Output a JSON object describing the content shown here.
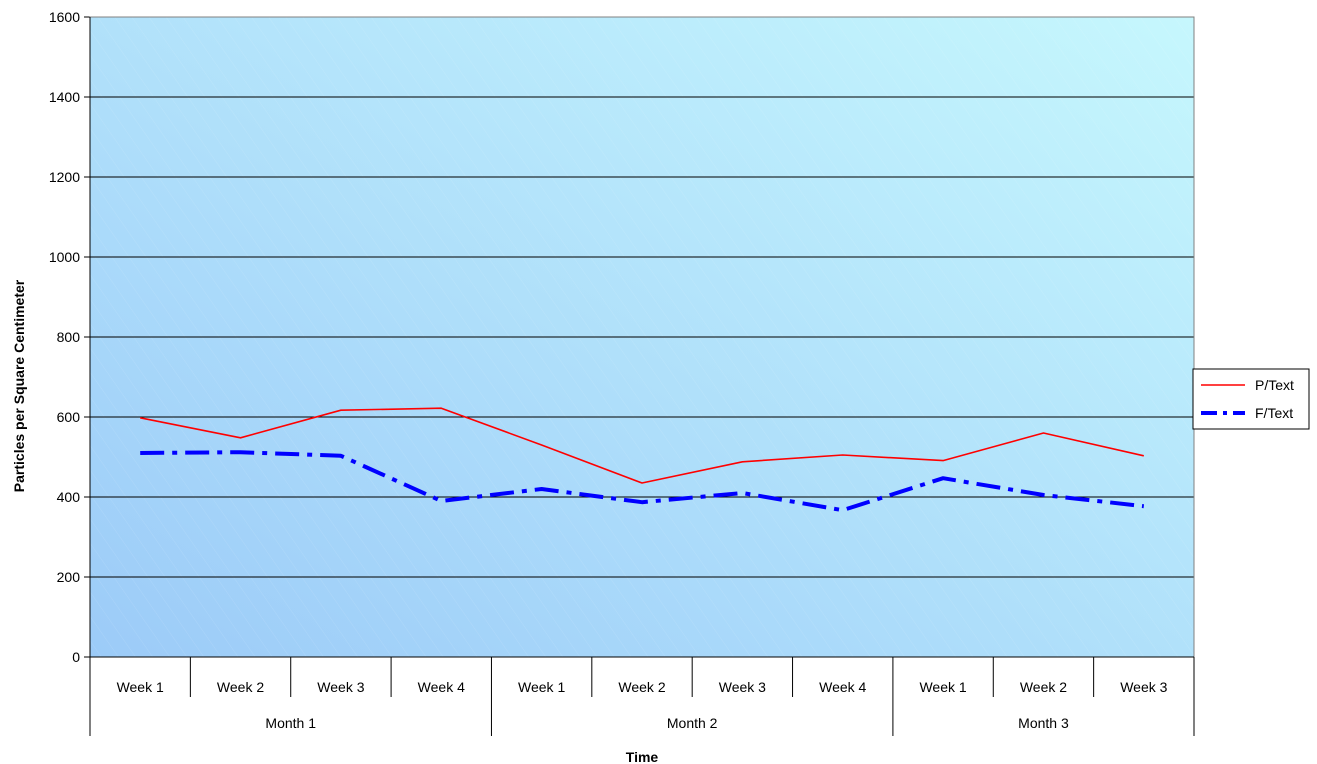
{
  "chart_data": {
    "type": "line",
    "xlabel": "Time",
    "ylabel": "Particles per Square Centimeter",
    "ylim": [
      0,
      1600
    ],
    "yticks": [
      0,
      200,
      400,
      600,
      800,
      1000,
      1200,
      1400,
      1600
    ],
    "grid": true,
    "legend_position": "right",
    "categories": [
      "Week 1",
      "Week 2",
      "Week 3",
      "Week 4",
      "Week 1",
      "Week 2",
      "Week 3",
      "Week 4",
      "Week 1",
      "Week 2",
      "Week 3"
    ],
    "groups": [
      {
        "label": "Month 1",
        "count": 4
      },
      {
        "label": "Month 2",
        "count": 4
      },
      {
        "label": "Month 3",
        "count": 3
      }
    ],
    "series": [
      {
        "name": "P/Text",
        "color": "#ff0000",
        "style": "solid",
        "values": [
          598,
          548,
          617,
          622,
          530,
          435,
          488,
          505,
          491,
          560,
          503
        ]
      },
      {
        "name": "F/Text",
        "color": "#0000ff",
        "style": "dash-dot",
        "values": [
          510,
          512,
          503,
          390,
          420,
          387,
          410,
          367,
          447,
          405,
          377
        ]
      }
    ],
    "background_gradient": [
      "#9ccbf8",
      "#c6f7fd"
    ]
  }
}
